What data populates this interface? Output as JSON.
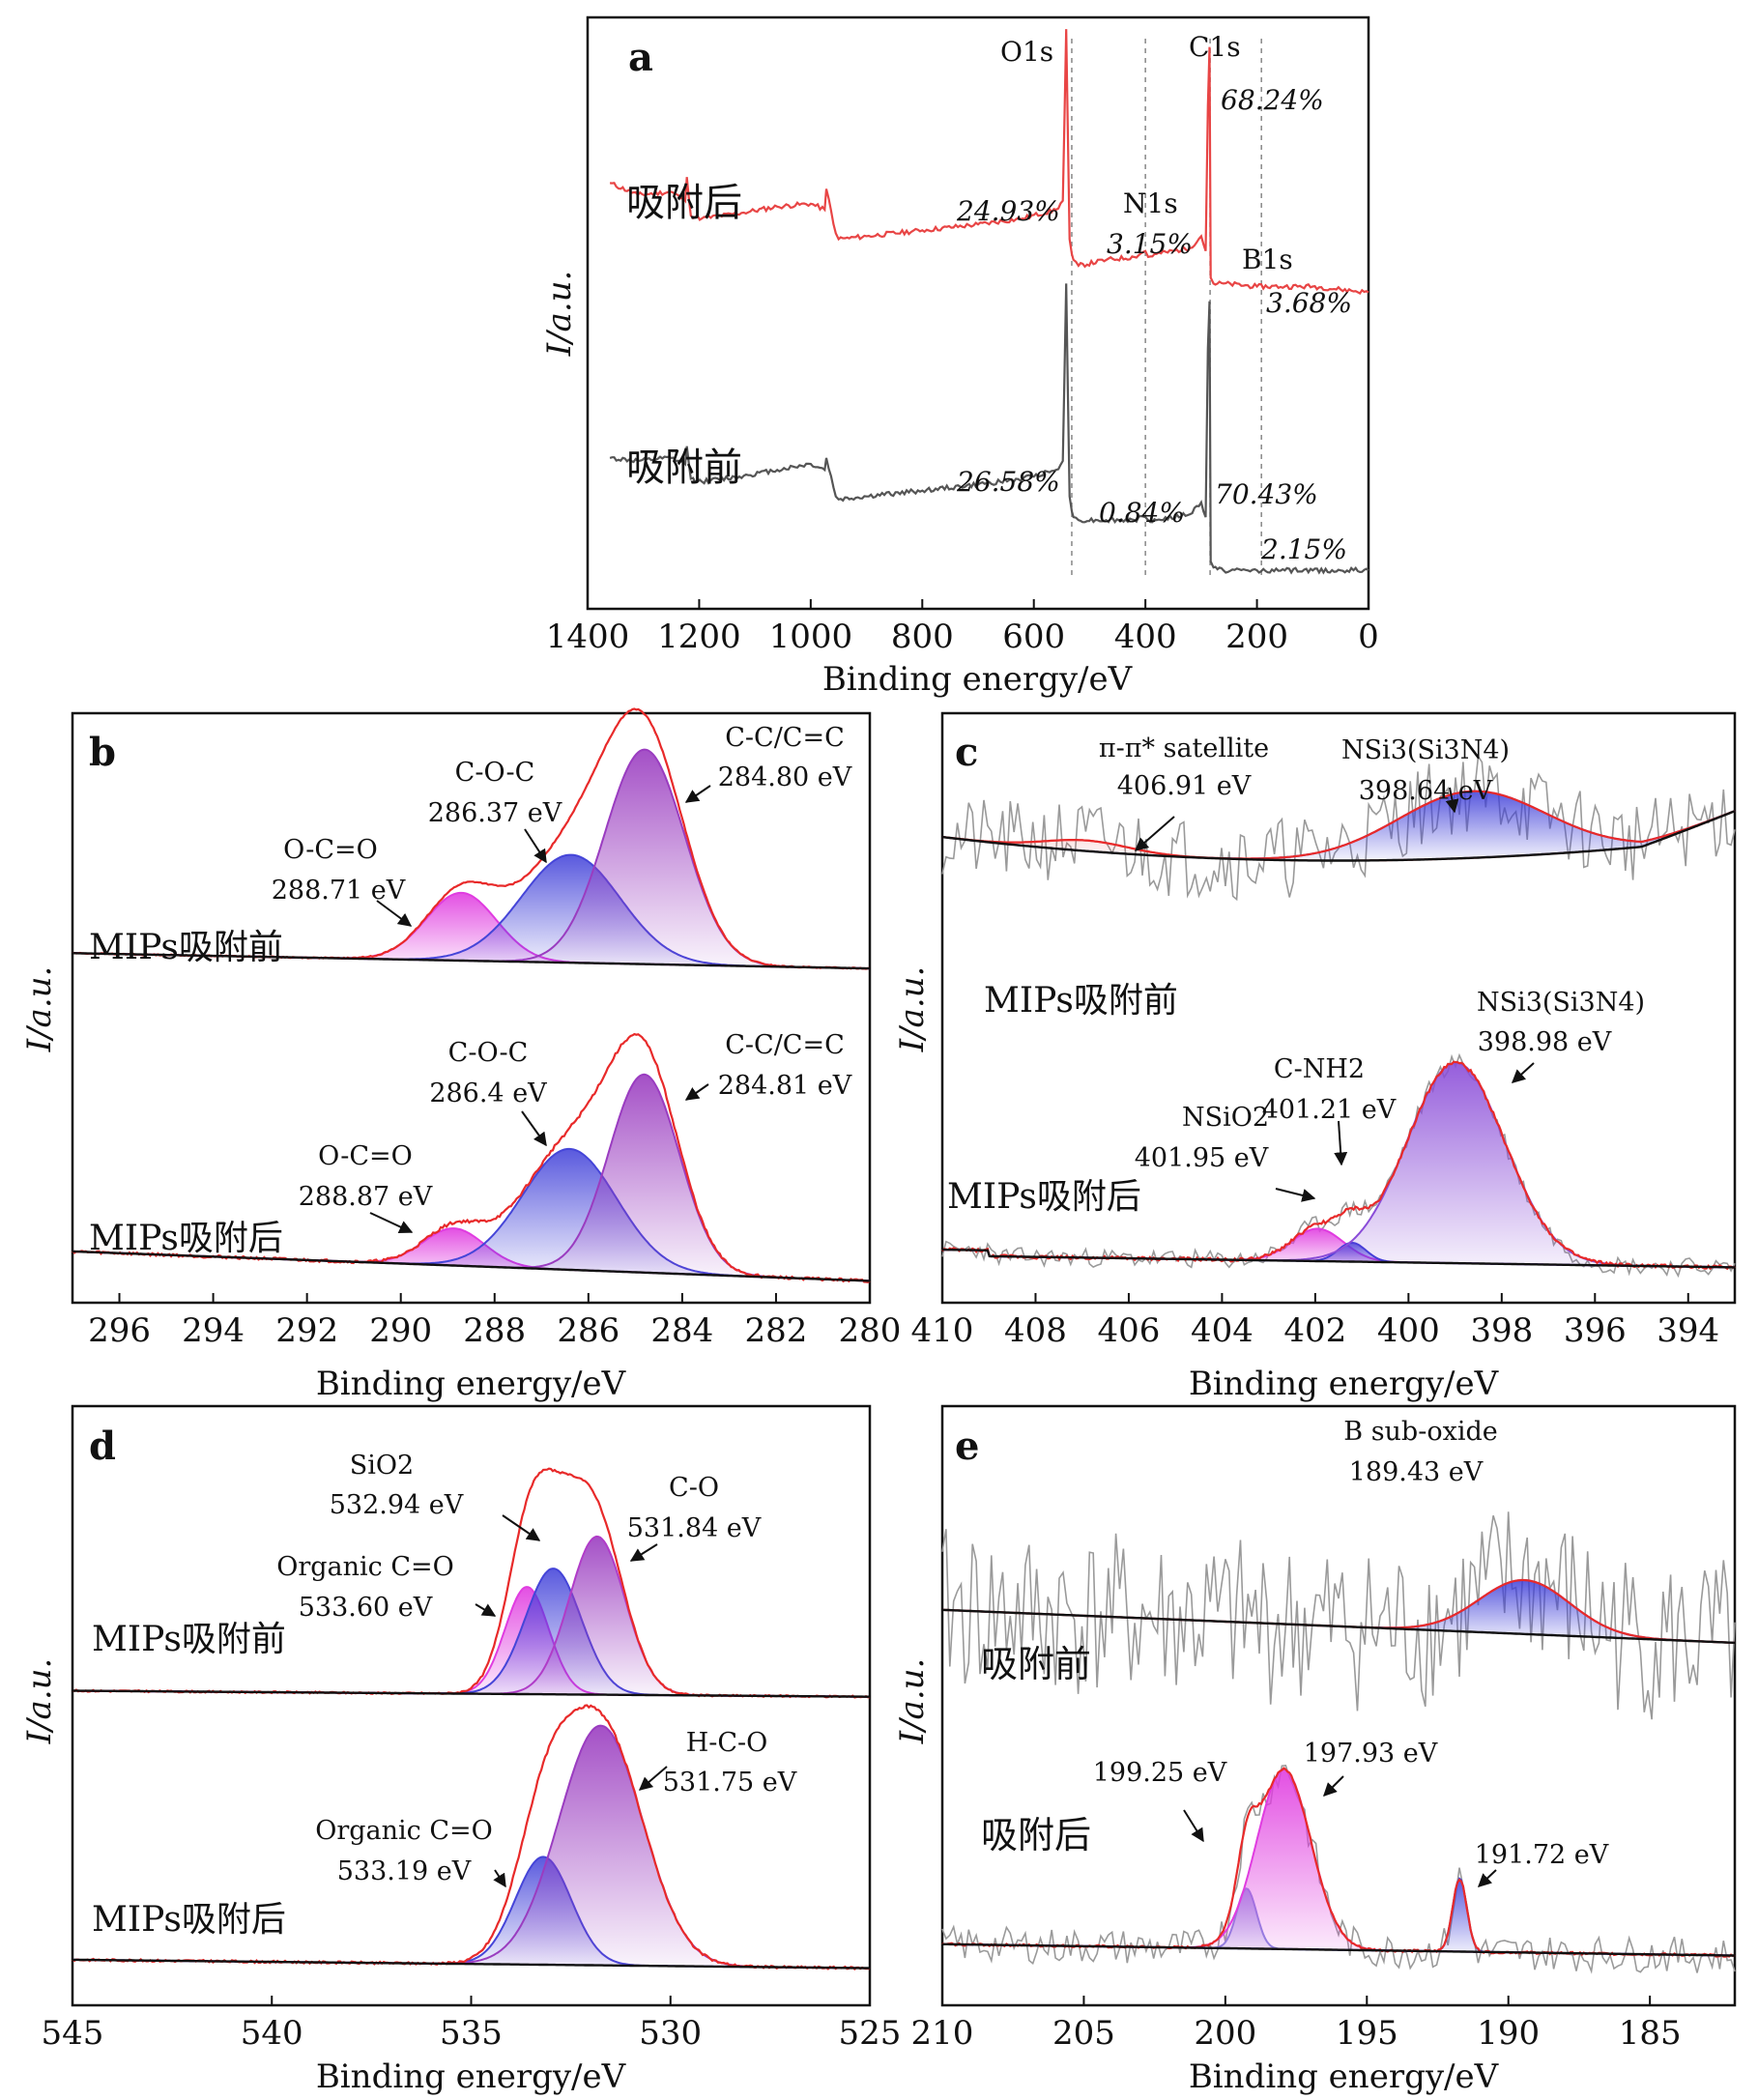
{
  "chart_data": [
    {
      "panel": "a",
      "type": "line",
      "xlabel": "Binding energy/eV",
      "ylabel": "I/a.u.",
      "xlim": [
        1400,
        0
      ],
      "ylim": [
        0,
        100
      ],
      "xticks": [
        1400,
        1200,
        1000,
        800,
        600,
        400,
        200,
        0
      ],
      "series": [
        {
          "name": "吸附后",
          "color": "#e84545",
          "x": [
            1360,
            1310,
            1250,
            1225,
            1222,
            1215,
            1195,
            1120,
            1060,
            1000,
            975,
            972,
            955,
            950,
            900,
            800,
            700,
            620,
            560,
            548,
            542,
            536,
            532,
            529,
            520,
            470,
            420,
            400,
            395,
            380,
            320,
            300,
            292,
            288,
            285,
            283,
            278,
            260,
            200,
            150,
            100,
            50,
            0
          ],
          "y": [
            72,
            70,
            70.5,
            69,
            73,
            66.5,
            66,
            67,
            68,
            68.5,
            67.5,
            71,
            63.5,
            62.5,
            63,
            64,
            65,
            66,
            67.5,
            69,
            98,
            62.5,
            60,
            59,
            58,
            59,
            59.5,
            60.5,
            59.5,
            60,
            61,
            63,
            60.5,
            85,
            95,
            56,
            55,
            55,
            54.5,
            54.5,
            54.5,
            54,
            53.5
          ]
        },
        {
          "name": "吸附前",
          "color": "#555555",
          "x": [
            1360,
            1310,
            1250,
            1225,
            1222,
            1215,
            1195,
            1120,
            1060,
            1000,
            975,
            972,
            955,
            950,
            900,
            800,
            700,
            620,
            560,
            548,
            542,
            536,
            532,
            529,
            520,
            470,
            420,
            400,
            395,
            380,
            320,
            300,
            292,
            288,
            285,
            283,
            278,
            260,
            200,
            150,
            100,
            50,
            0
          ],
          "y": [
            25.5,
            25,
            25.5,
            24.5,
            27.5,
            22,
            21.5,
            22.5,
            23.5,
            24.5,
            23.5,
            25.5,
            19,
            18.5,
            19,
            20,
            21,
            22,
            23.5,
            25,
            55,
            19,
            16.5,
            15.5,
            15,
            15,
            15,
            15.5,
            15,
            15,
            16,
            18,
            15.5,
            44,
            52,
            8,
            7,
            6.5,
            6.5,
            6.5,
            6.5,
            6.5,
            6.5
          ]
        }
      ],
      "dashed_lines_x": [
        532,
        400,
        284,
        192
      ],
      "annotations": [
        "O1s",
        "C1s",
        "N1s",
        "B1s",
        "68.24%",
        "24.93%",
        "3.15%",
        "3.68%",
        "26.58%",
        "0.84%",
        "70.43%",
        "2.15%"
      ],
      "labels": [
        "吸附后",
        "吸附前"
      ]
    },
    {
      "panel": "b",
      "type": "area",
      "xlabel": "Binding energy/eV",
      "ylabel": "I/a.u.",
      "xlim": [
        297,
        280
      ],
      "ylim": [
        0,
        100
      ],
      "xticks": [
        296,
        294,
        292,
        290,
        288,
        286,
        284,
        282,
        280
      ],
      "groups": [
        {
          "label": "MIPs吸附前",
          "baseline_left": 59.3,
          "baseline_right": 56.7,
          "peaks": [
            {
              "name": "O-C=O",
              "center": 288.71,
              "height": 11.5,
              "width": 0.75,
              "color": "#e03ce0"
            },
            {
              "name": "C-O-C",
              "center": 286.37,
              "height": 18.3,
              "width": 1.05,
              "color": "#4545d8"
            },
            {
              "name": "C-C/C=C",
              "center": 284.8,
              "height": 36.4,
              "width": 0.85,
              "color": "#9a3cc0"
            }
          ],
          "labels": [
            [
              "O-C=O",
              "288.71 eV"
            ],
            [
              "C-O-C",
              "286.37 eV"
            ],
            [
              "C-C/C=C",
              "284.80 eV"
            ]
          ]
        },
        {
          "label": "MIPs吸附后",
          "baseline_left": 8.7,
          "baseline_right": 3.7,
          "peaks": [
            {
              "name": "O-C=O",
              "center": 288.87,
              "height": 6.3,
              "width": 0.65,
              "color": "#e03ce0"
            },
            {
              "name": "C-O-C",
              "center": 286.4,
              "height": 20.5,
              "width": 1.0,
              "color": "#4545d8"
            },
            {
              "name": "C-C/C=C",
              "center": 284.81,
              "height": 33.6,
              "width": 0.75,
              "color": "#9a3cc0"
            }
          ],
          "labels": [
            [
              "O-C=O",
              "288.87 eV"
            ],
            [
              "C-O-C",
              "286.4 eV"
            ],
            [
              "C-C/C=C",
              "284.81 eV"
            ]
          ]
        }
      ]
    },
    {
      "panel": "c",
      "type": "area",
      "xlabel": "Binding energy/eV",
      "ylabel": "I/a.u.",
      "xlim": [
        410,
        393
      ],
      "ylim": [
        0,
        100
      ],
      "xticks": [
        410,
        408,
        406,
        404,
        402,
        400,
        398,
        396,
        394
      ],
      "groups": [
        {
          "label": "MIPs吸附前",
          "peaks": [
            {
              "name": "π-π* satellite",
              "center": 406.91,
              "height": 1.8,
              "width": 0.9,
              "color": "#e84545"
            },
            {
              "name": "NSi3(Si3N4)",
              "center": 398.64,
              "height": 11.3,
              "width": 1.6,
              "color": "#3c3cd8"
            }
          ],
          "labels": [
            [
              "π-π* satellite",
              "406.91 eV"
            ],
            [
              "NSi3(Si3N4)",
              "398.64 eV"
            ]
          ]
        },
        {
          "label": "MIPs吸附后",
          "peaks": [
            {
              "name": "NSiO2",
              "center": 401.95,
              "height": 5.5,
              "width": 0.55,
              "color": "#e03ce0"
            },
            {
              "name": "C-NH2",
              "center": 401.21,
              "height": 3.2,
              "width": 0.3,
              "color": "#3c3cd8"
            },
            {
              "name": "NSi3(Si3N4)",
              "center": 398.98,
              "height": 34,
              "width": 1.05,
              "color": "#8a4cd8"
            }
          ],
          "labels": [
            [
              "NSiO2",
              "401.95 eV"
            ],
            [
              "C-NH2",
              "401.21 eV"
            ],
            [
              "NSi3(Si3N4)",
              "398.98 eV"
            ]
          ]
        }
      ]
    },
    {
      "panel": "d",
      "type": "area",
      "xlabel": "Binding energy/eV",
      "ylabel": "I/a.u.",
      "xlim": [
        545,
        525
      ],
      "ylim": [
        0,
        100
      ],
      "xticks": [
        545,
        540,
        535,
        530,
        525
      ],
      "groups": [
        {
          "label": "MIPs吸附前",
          "peaks": [
            {
              "name": "Organic C=O",
              "center": 533.6,
              "height": 17.9,
              "width": 0.55,
              "color": "#e03ce0"
            },
            {
              "name": "SiO2",
              "center": 532.94,
              "height": 21,
              "width": 0.7,
              "color": "#4545d8"
            },
            {
              "name": "C-O",
              "center": 531.84,
              "height": 26.4,
              "width": 0.7,
              "color": "#b03cc8"
            }
          ],
          "labels": [
            [
              "Organic C=O",
              "533.60 eV"
            ],
            [
              "SiO2",
              "532.94 eV"
            ],
            [
              "C-O",
              "531.84 eV"
            ]
          ]
        },
        {
          "label": "MIPs吸附后",
          "peaks": [
            {
              "name": "Organic C=O",
              "center": 533.19,
              "height": 18,
              "width": 0.7,
              "color": "#4545d8"
            },
            {
              "name": "H-C-O",
              "center": 531.75,
              "height": 40,
              "width": 1.05,
              "color": "#9a3cc0"
            }
          ],
          "labels": [
            [
              "Organic C=O",
              "533.19 eV"
            ],
            [
              "H-C-O",
              "531.75 eV"
            ]
          ]
        }
      ]
    },
    {
      "panel": "e",
      "type": "area",
      "xlabel": "Binding energy/eV",
      "ylabel": "I/a.u.",
      "xlim": [
        210,
        182
      ],
      "ylim": [
        0,
        100
      ],
      "xticks": [
        210,
        205,
        200,
        195,
        190,
        185
      ],
      "groups": [
        {
          "label": "吸附前",
          "peaks": [
            {
              "name": "B sub-oxide",
              "center": 189.43,
              "height": 9,
              "width": 1.6,
              "color": "#3c3cd8"
            }
          ],
          "labels": [
            [
              "B sub-oxide",
              "189.43 eV"
            ]
          ]
        },
        {
          "label": "吸附后",
          "peaks": [
            {
              "name": "199.25",
              "center": 199.25,
              "height": 10,
              "width": 0.35,
              "color": "#8888e0"
            },
            {
              "name": "197.93",
              "center": 197.93,
              "height": 30,
              "width": 0.95,
              "color": "#e03ce0"
            },
            {
              "name": "191.72",
              "center": 191.72,
              "height": 12.2,
              "width": 0.25,
              "color": "#3c3cd8"
            }
          ],
          "labels": [
            [
              "199.25 eV"
            ],
            [
              "197.93 eV"
            ],
            [
              "191.72 eV"
            ]
          ]
        }
      ]
    }
  ]
}
